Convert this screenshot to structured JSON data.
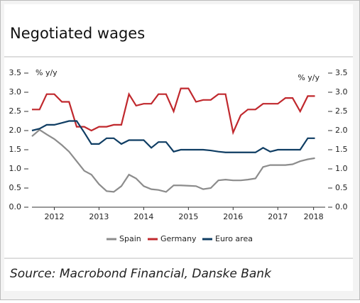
{
  "chart_data": {
    "type": "line",
    "title": "Negotiated wages",
    "ylabel": "% y/y",
    "y2label": "% y/y",
    "source": "Source: Macrobond Financial, Danske Bank",
    "x": [
      2012,
      2012.17,
      2012.33,
      2012.5,
      2012.67,
      2012.83,
      2013,
      2013.17,
      2013.33,
      2013.5,
      2013.67,
      2013.83,
      2014,
      2014.17,
      2014.33,
      2014.5,
      2014.67,
      2014.83,
      2015,
      2015.17,
      2015.33,
      2015.5,
      2015.67,
      2015.83,
      2016,
      2016.17,
      2016.33,
      2016.5,
      2016.67,
      2016.83,
      2017,
      2017.17,
      2017.33,
      2017.5,
      2017.67,
      2017.83,
      2018,
      2018.17,
      2018.33
    ],
    "series": [
      {
        "name": "Spain",
        "color": "#8c8c8c",
        "values": [
          1.85,
          2.02,
          1.9,
          1.78,
          1.62,
          1.45,
          1.2,
          0.95,
          0.85,
          0.6,
          0.42,
          0.4,
          0.55,
          0.85,
          0.75,
          0.55,
          0.47,
          0.45,
          0.4,
          0.57,
          0.57,
          0.56,
          0.55,
          0.47,
          0.5,
          0.7,
          0.72,
          0.7,
          0.7,
          0.72,
          0.75,
          1.05,
          1.1,
          1.1,
          1.1,
          1.12,
          1.2,
          1.25,
          1.28
        ]
      },
      {
        "name": "Germany",
        "color": "#c0282d",
        "values": [
          2.55,
          2.55,
          2.95,
          2.95,
          2.75,
          2.75,
          2.1,
          2.1,
          2.0,
          2.1,
          2.1,
          2.15,
          2.15,
          2.95,
          2.65,
          2.7,
          2.7,
          2.95,
          2.95,
          2.5,
          3.1,
          3.1,
          2.75,
          2.8,
          2.8,
          2.95,
          2.95,
          1.95,
          2.4,
          2.55,
          2.55,
          2.7,
          2.7,
          2.7,
          2.85,
          2.85,
          2.5,
          2.9,
          2.9
        ]
      },
      {
        "name": "Euro area",
        "color": "#0f3d63",
        "values": [
          2.0,
          2.05,
          2.15,
          2.15,
          2.2,
          2.25,
          2.25,
          1.95,
          1.65,
          1.65,
          1.8,
          1.8,
          1.65,
          1.75,
          1.75,
          1.75,
          1.55,
          1.7,
          1.7,
          1.45,
          1.5,
          1.5,
          1.5,
          1.5,
          1.48,
          1.45,
          1.43,
          1.43,
          1.43,
          1.43,
          1.43,
          1.55,
          1.45,
          1.5,
          1.5,
          1.5,
          1.5,
          1.8,
          1.8
        ]
      }
    ],
    "xlim": [
      2012,
      2018.56
    ],
    "xticks": [
      {
        "value": 2012.5,
        "label": "2012"
      },
      {
        "value": 2013.5,
        "label": "2013"
      },
      {
        "value": 2014.5,
        "label": "2014"
      },
      {
        "value": 2015.5,
        "label": "2015"
      },
      {
        "value": 2016.5,
        "label": "2016"
      },
      {
        "value": 2017.5,
        "label": "2017"
      },
      {
        "value": 2018.3,
        "label": "2018"
      }
    ],
    "ylim": [
      0,
      3.5
    ],
    "yticks": [
      {
        "value": 0,
        "label": "0.0"
      },
      {
        "value": 0.5,
        "label": "0.5"
      },
      {
        "value": 1,
        "label": "1.0"
      },
      {
        "value": 1.5,
        "label": "1.5"
      },
      {
        "value": 2,
        "label": "2.0"
      },
      {
        "value": 2.5,
        "label": "2.5"
      },
      {
        "value": 3,
        "label": "3.0"
      },
      {
        "value": 3.5,
        "label": "3.5"
      }
    ],
    "y2lim": [
      0,
      3.5
    ],
    "y2ticks": [
      {
        "value": 0,
        "label": "0.0"
      },
      {
        "value": 0.5,
        "label": "0.5"
      },
      {
        "value": 1,
        "label": "1.0"
      },
      {
        "value": 1.5,
        "label": "1.5"
      },
      {
        "value": 2,
        "label": "2.0"
      },
      {
        "value": 2.5,
        "label": "2.5"
      },
      {
        "value": 3,
        "label": "3.0"
      },
      {
        "value": 3.5,
        "label": "3.5"
      }
    ],
    "legend": "bottom"
  }
}
